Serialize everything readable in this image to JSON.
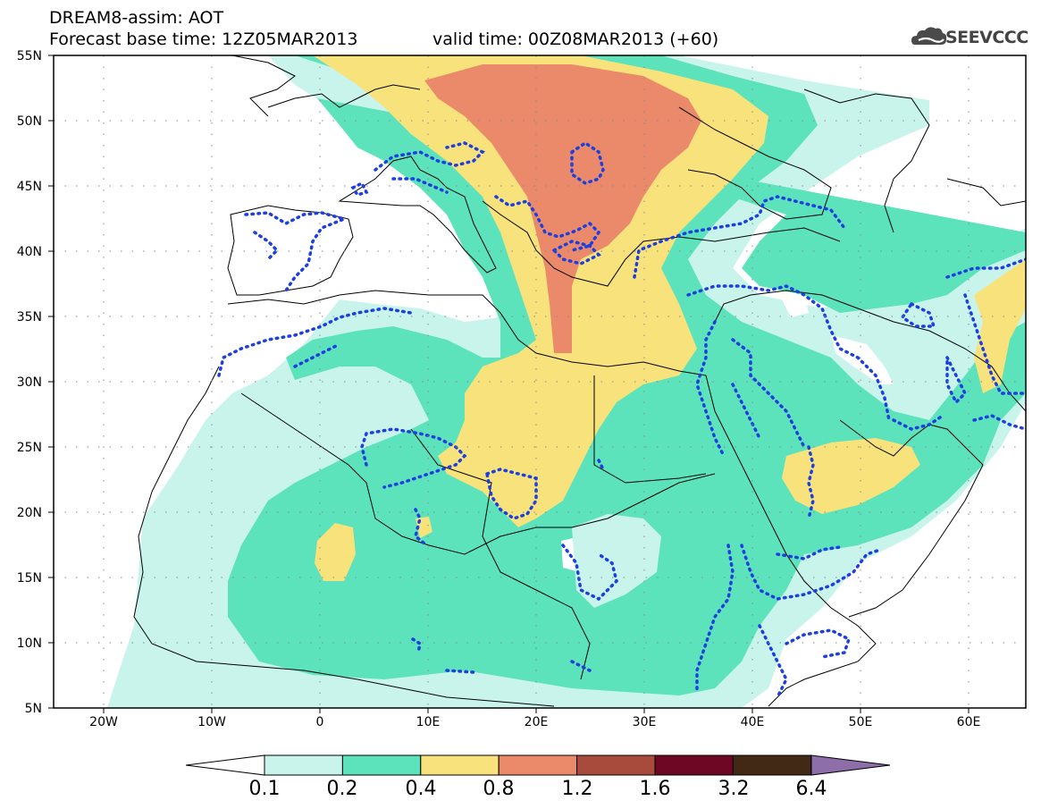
{
  "header": {
    "line1": "DREAM8-assim: AOT",
    "line2_left": "Forecast base time: 12Z05MAR2013",
    "line2_right": "valid time: 00Z08MAR2013 (+60)",
    "logo_text": "SEEVCCC"
  },
  "map": {
    "lat_labels": [
      "55N",
      "50N",
      "45N",
      "40N",
      "35N",
      "30N",
      "25N",
      "20N",
      "15N",
      "10N",
      "5N"
    ],
    "lon_labels": [
      "20W",
      "10W",
      "0",
      "10E",
      "20E",
      "30E",
      "40E",
      "50E",
      "60E"
    ],
    "lon_range": [
      -25,
      65
    ],
    "lat_range": [
      5,
      55
    ]
  },
  "colorbar": {
    "levels": [
      "0.1",
      "0.2",
      "0.4",
      "0.8",
      "1.2",
      "1.6",
      "3.2",
      "6.4"
    ],
    "colors": [
      "#c8f4ec",
      "#5ce3bb",
      "#f8e27c",
      "#eb8a6a",
      "#a84b3c",
      "#6e0723",
      "#412916",
      "#8e6ea8"
    ]
  }
}
